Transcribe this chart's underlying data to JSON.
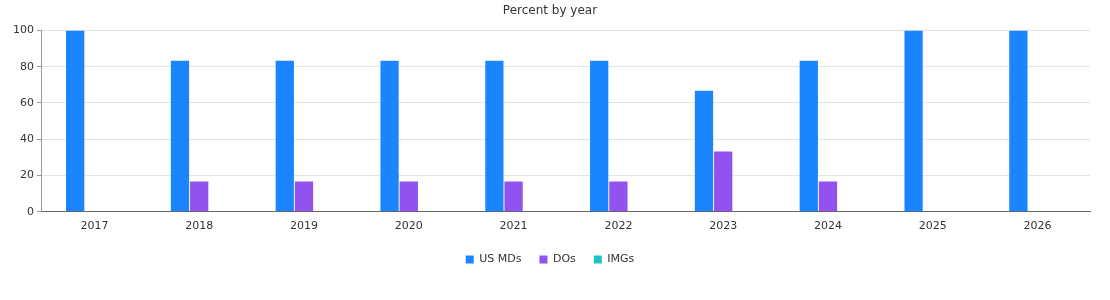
{
  "chart_data": {
    "type": "bar",
    "title": "Percent by year",
    "categories": [
      "2017",
      "2018",
      "2019",
      "2020",
      "2021",
      "2022",
      "2023",
      "2024",
      "2025",
      "2026"
    ],
    "series": [
      {
        "name": "US MDs",
        "color": "#1a85ff",
        "values": [
          100,
          83.3,
          83.3,
          83.3,
          83.3,
          83.3,
          66.7,
          83.3,
          100,
          100
        ]
      },
      {
        "name": "DOs",
        "color": "#9152f0",
        "values": [
          0,
          16.7,
          16.7,
          16.7,
          16.7,
          16.7,
          33.3,
          16.7,
          0,
          0
        ]
      },
      {
        "name": "IMGs",
        "color": "#1fc2c2",
        "values": [
          0,
          0,
          0,
          0,
          0,
          0,
          0,
          0,
          0,
          0
        ]
      }
    ],
    "ylim": [
      0,
      100
    ],
    "yticks": [
      0,
      20,
      40,
      60,
      80,
      100
    ],
    "grid": "y",
    "legend": "bottom"
  }
}
